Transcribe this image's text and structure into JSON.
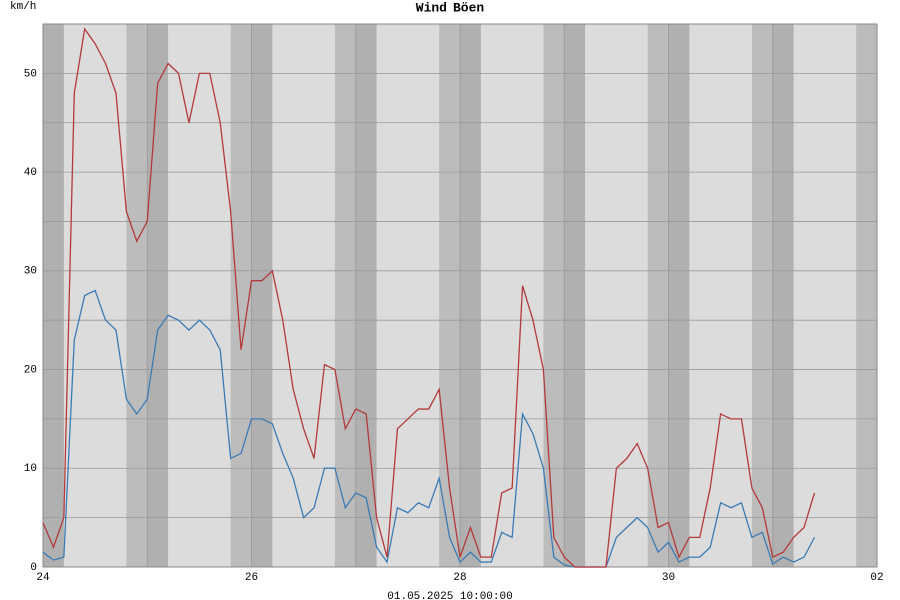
{
  "chart_data": {
    "type": "line",
    "y_unit": "km/h",
    "footer": "01.05.2025 10:00:00",
    "x": [
      24.0,
      24.1,
      24.2,
      24.3,
      24.4,
      24.5,
      24.6,
      24.7,
      24.8,
      24.9,
      25.0,
      25.1,
      25.2,
      25.3,
      25.4,
      25.5,
      25.6,
      25.7,
      25.8,
      25.9,
      26.0,
      26.1,
      26.2,
      26.3,
      26.4,
      26.5,
      26.6,
      26.7,
      26.8,
      26.9,
      27.0,
      27.1,
      27.2,
      27.3,
      27.4,
      27.5,
      27.6,
      27.7,
      27.8,
      27.9,
      28.0,
      28.1,
      28.2,
      28.3,
      28.4,
      28.5,
      28.6,
      28.7,
      28.8,
      28.9,
      29.0,
      29.1,
      29.2,
      29.3,
      29.4,
      29.5,
      29.6,
      29.7,
      29.8,
      29.9,
      30.0,
      30.1,
      30.2,
      30.3,
      30.4,
      30.5,
      30.6,
      30.7,
      30.8,
      30.9,
      31.0,
      31.1,
      31.2,
      31.3,
      31.4
    ],
    "series": [
      {
        "name": "Wind",
        "color": "#3b7bb5",
        "values": [
          1.5,
          0.7,
          1,
          23,
          27.5,
          28,
          25,
          24,
          17,
          15.5,
          17,
          24,
          25.5,
          25,
          24,
          25,
          24,
          22,
          11,
          11.5,
          15,
          15,
          14.5,
          11.5,
          9,
          5,
          6,
          10,
          10,
          6,
          7.5,
          7,
          2,
          0.5,
          6,
          5.5,
          6.5,
          6,
          9,
          3,
          0.5,
          1.5,
          0.5,
          0.5,
          3.5,
          3,
          15.5,
          13.5,
          10,
          1,
          0.2,
          0,
          0,
          0,
          0,
          3,
          4,
          5,
          4,
          1.5,
          2.5,
          0.5,
          1,
          1,
          2,
          6.5,
          6,
          6.5,
          3,
          3.5,
          0.3,
          1,
          0.5,
          1,
          3
        ]
      },
      {
        "name": "Böen",
        "color": "#b33a3a",
        "values": [
          4.5,
          2,
          5,
          48,
          54.5,
          53,
          51,
          48,
          36,
          33,
          35,
          49,
          51,
          50,
          45,
          50,
          50,
          45,
          36,
          22,
          29,
          29,
          30,
          25,
          18,
          14,
          11,
          20.5,
          20,
          14,
          16,
          15.5,
          5,
          1,
          14,
          15,
          16,
          16,
          18,
          8,
          1,
          4,
          1,
          1,
          7.5,
          8,
          28.5,
          25,
          20,
          3,
          1,
          0,
          0,
          0,
          0,
          10,
          11,
          12.5,
          10,
          4,
          4.5,
          1,
          3,
          3,
          8,
          15.5,
          15,
          15,
          8,
          6,
          1,
          1.5,
          3,
          4,
          7.5
        ]
      }
    ],
    "xlim": [
      24,
      32
    ],
    "xticks": [
      24,
      26,
      28,
      30,
      {
        "value": 32,
        "label": "02"
      }
    ],
    "xgrid_minor": [
      25,
      27,
      29,
      31
    ],
    "ylim": [
      0,
      55
    ],
    "yticks": [
      0,
      10,
      20,
      30,
      40,
      50
    ],
    "ygrid_minor": [
      5,
      15,
      25,
      35,
      45
    ],
    "grid": true
  }
}
